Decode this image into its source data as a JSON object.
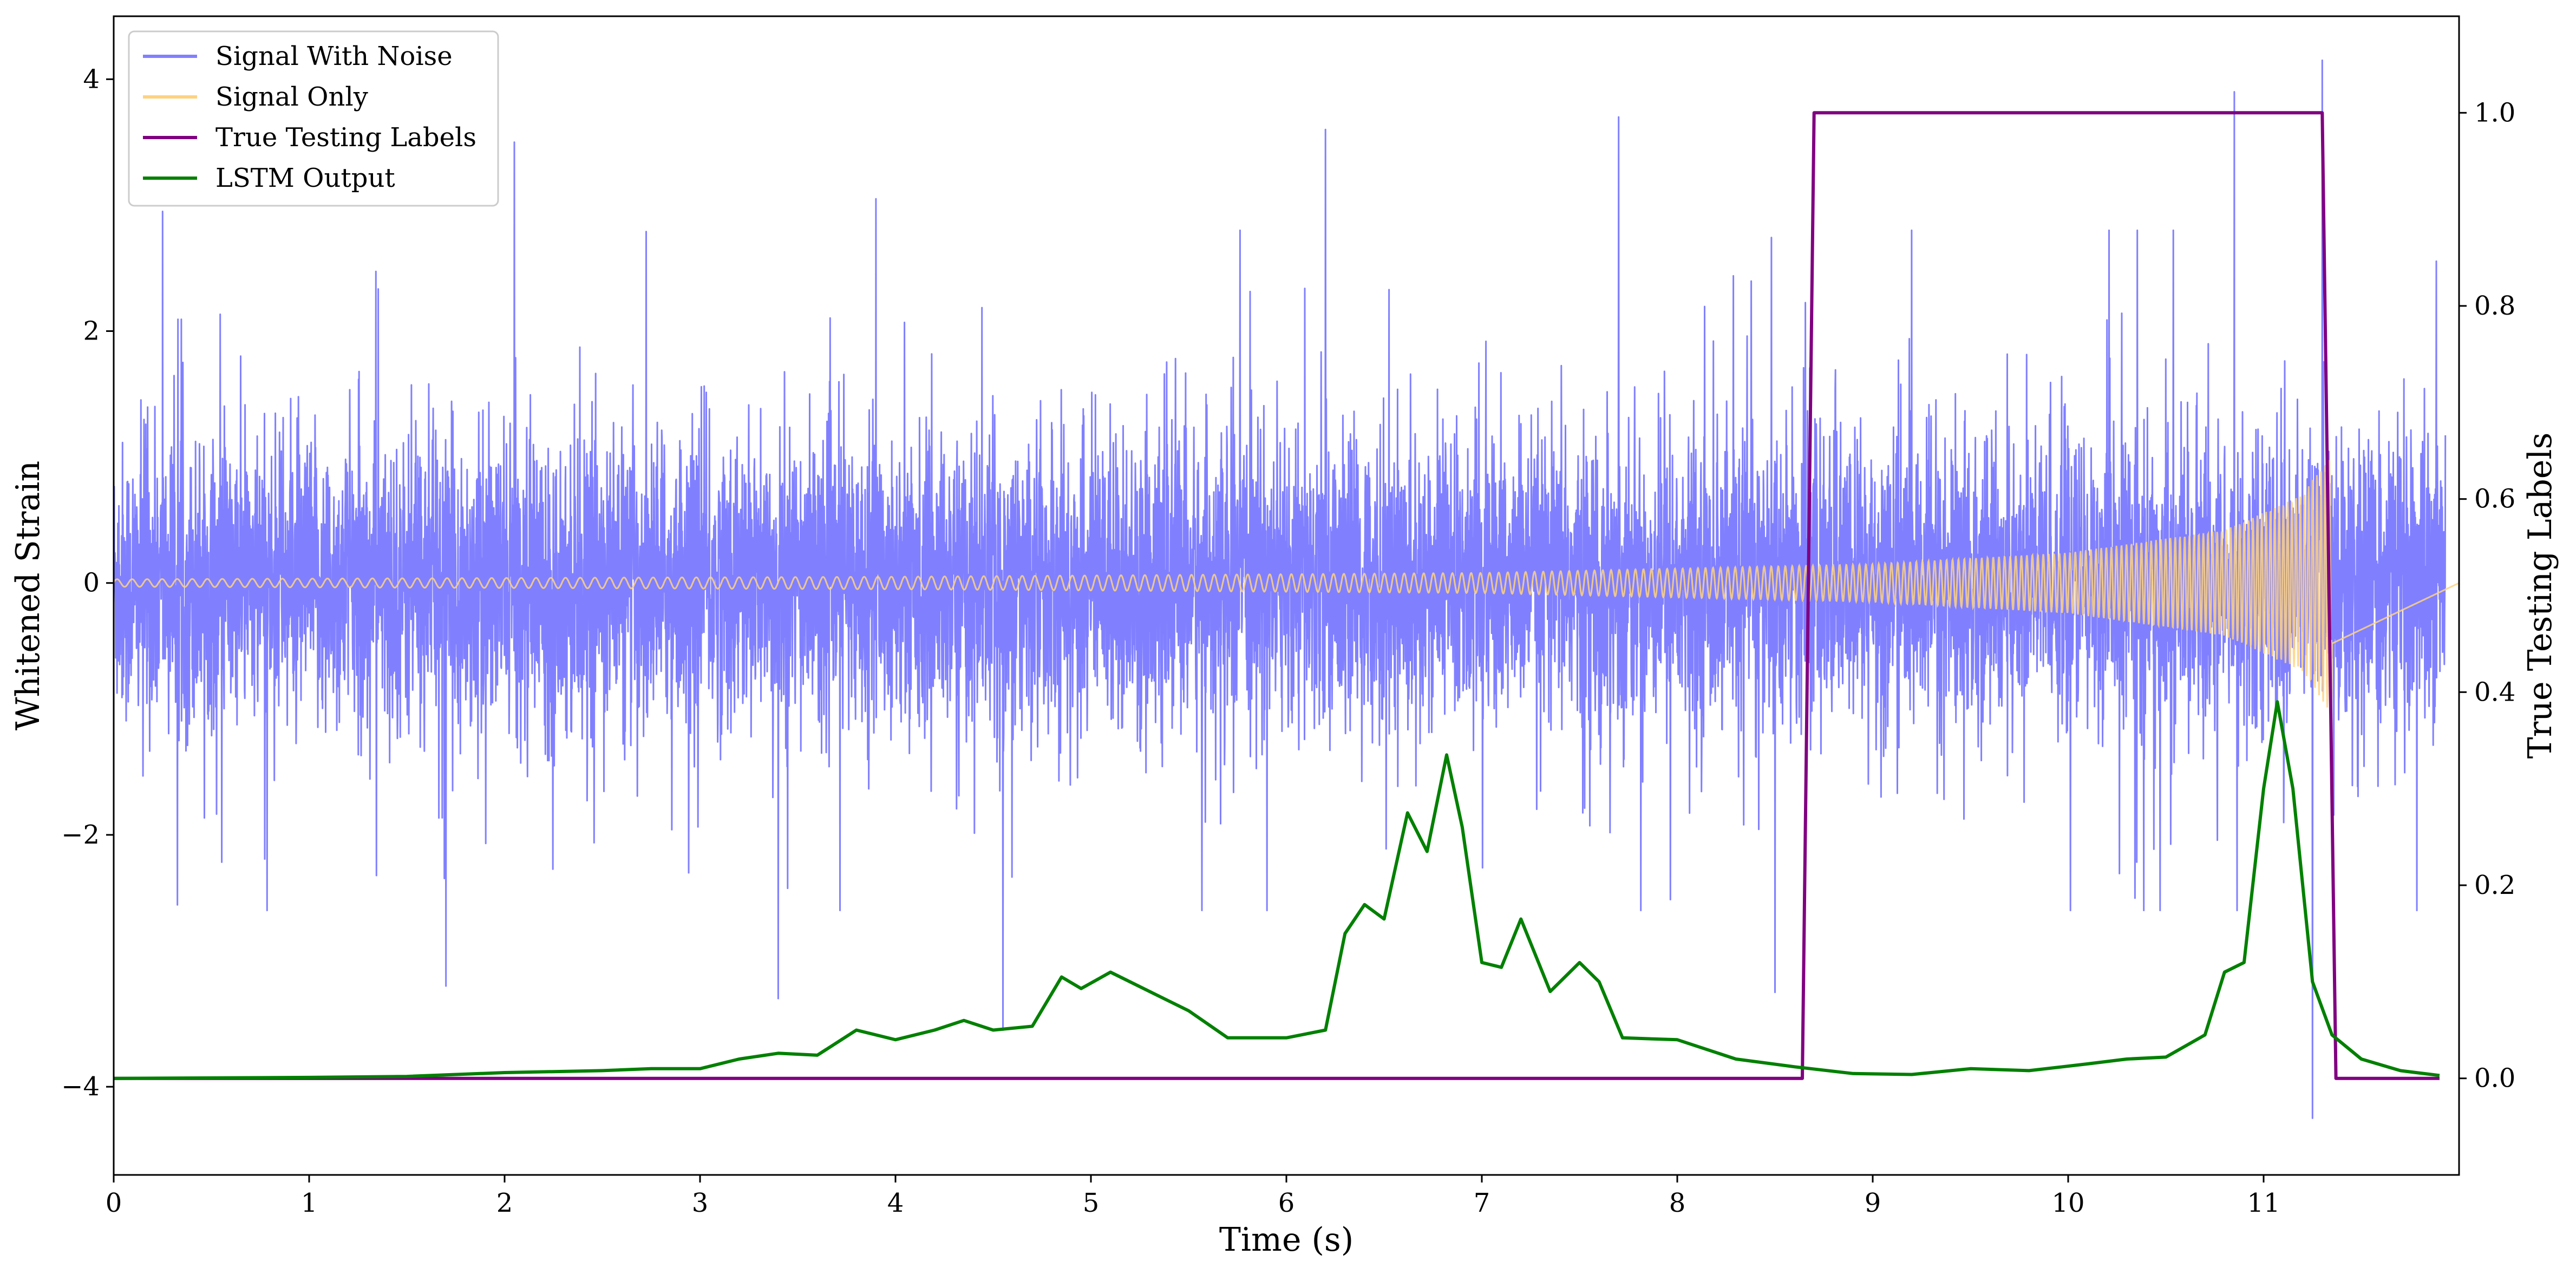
{
  "chart_data": {
    "type": "line",
    "xlabel": "Time (s)",
    "ylabel": "Whitened Strain",
    "y2label": "True Testing Labels",
    "xlim": [
      0,
      12
    ],
    "ylim": [
      -4.7,
      4.5
    ],
    "y2lim": [
      -0.1,
      1.1
    ],
    "x_ticks": [
      0,
      1,
      2,
      3,
      4,
      5,
      6,
      7,
      8,
      9,
      10,
      11
    ],
    "y_ticks": [
      {
        "value": -4,
        "label": "−4"
      },
      {
        "value": -2,
        "label": "−2"
      },
      {
        "value": 0,
        "label": "0"
      },
      {
        "value": 2,
        "label": "2"
      },
      {
        "value": 4,
        "label": "4"
      }
    ],
    "y2_ticks": [
      {
        "value": 0.0,
        "label": "0.0"
      },
      {
        "value": 0.2,
        "label": "0.2"
      },
      {
        "value": 0.4,
        "label": "0.4"
      },
      {
        "value": 0.6,
        "label": "0.6"
      },
      {
        "value": 0.8,
        "label": "0.8"
      },
      {
        "value": 1.0,
        "label": "1.0"
      }
    ],
    "grid": false,
    "legend_position": "top-left",
    "legend": [
      {
        "name": "Signal With Noise",
        "color": "#8080ff"
      },
      {
        "name": "Signal Only",
        "color": "#ffd27f"
      },
      {
        "name": "True Testing Labels",
        "color": "#800080"
      },
      {
        "name": "LSTM Output",
        "color": "#008000"
      }
    ],
    "series": [
      {
        "name": "Signal With Noise",
        "axis": "left",
        "color": "#8080ff",
        "style": "dense_noise",
        "center": 0,
        "band_std": 0.55,
        "typical_peak_range": [
          -2.0,
          2.3
        ],
        "extreme_points": [
          {
            "x": 0.25,
            "y": 2.95
          },
          {
            "x": 2.05,
            "y": 3.5
          },
          {
            "x": 3.9,
            "y": 3.05
          },
          {
            "x": 6.2,
            "y": 3.6
          },
          {
            "x": 7.7,
            "y": 3.7
          },
          {
            "x": 10.85,
            "y": 3.9
          },
          {
            "x": 11.3,
            "y": 4.15
          },
          {
            "x": 1.7,
            "y": -3.2
          },
          {
            "x": 3.4,
            "y": -3.3
          },
          {
            "x": 4.55,
            "y": -3.55
          },
          {
            "x": 8.5,
            "y": -3.25
          },
          {
            "x": 11.25,
            "y": -4.25
          }
        ]
      },
      {
        "name": "Signal Only",
        "axis": "left",
        "color": "#ffd27f",
        "style": "chirp",
        "start": 0,
        "end": 11.35,
        "envelope": [
          {
            "x": 0,
            "y": 0.03
          },
          {
            "x": 4,
            "y": 0.05
          },
          {
            "x": 7,
            "y": 0.08
          },
          {
            "x": 9,
            "y": 0.15
          },
          {
            "x": 10,
            "y": 0.24
          },
          {
            "x": 10.8,
            "y": 0.42
          },
          {
            "x": 11.2,
            "y": 0.7
          },
          {
            "x": 11.33,
            "y": 1.0
          }
        ]
      },
      {
        "name": "True Testing Labels",
        "axis": "right",
        "color": "#800080",
        "points": [
          {
            "x": 0,
            "y": 0
          },
          {
            "x": 8.64,
            "y": 0
          },
          {
            "x": 8.7,
            "y": 1
          },
          {
            "x": 11.3,
            "y": 1
          },
          {
            "x": 11.37,
            "y": 0
          },
          {
            "x": 11.9,
            "y": 0
          }
        ]
      },
      {
        "name": "LSTM Output",
        "axis": "right",
        "color": "#008000",
        "points": [
          {
            "x": 0,
            "y": 0.0
          },
          {
            "x": 1.0,
            "y": 0.001
          },
          {
            "x": 1.5,
            "y": 0.002
          },
          {
            "x": 2.0,
            "y": 0.006
          },
          {
            "x": 2.5,
            "y": 0.008
          },
          {
            "x": 2.75,
            "y": 0.01
          },
          {
            "x": 3.0,
            "y": 0.01
          },
          {
            "x": 3.2,
            "y": 0.02
          },
          {
            "x": 3.4,
            "y": 0.026
          },
          {
            "x": 3.6,
            "y": 0.024
          },
          {
            "x": 3.8,
            "y": 0.05
          },
          {
            "x": 4.0,
            "y": 0.04
          },
          {
            "x": 4.2,
            "y": 0.05
          },
          {
            "x": 4.35,
            "y": 0.06
          },
          {
            "x": 4.5,
            "y": 0.05
          },
          {
            "x": 4.7,
            "y": 0.054
          },
          {
            "x": 4.85,
            "y": 0.105
          },
          {
            "x": 4.95,
            "y": 0.093
          },
          {
            "x": 5.1,
            "y": 0.11
          },
          {
            "x": 5.3,
            "y": 0.09
          },
          {
            "x": 5.5,
            "y": 0.07
          },
          {
            "x": 5.7,
            "y": 0.042
          },
          {
            "x": 6.0,
            "y": 0.042
          },
          {
            "x": 6.2,
            "y": 0.05
          },
          {
            "x": 6.3,
            "y": 0.15
          },
          {
            "x": 6.4,
            "y": 0.18
          },
          {
            "x": 6.5,
            "y": 0.165
          },
          {
            "x": 6.62,
            "y": 0.275
          },
          {
            "x": 6.72,
            "y": 0.235
          },
          {
            "x": 6.82,
            "y": 0.335
          },
          {
            "x": 6.9,
            "y": 0.26
          },
          {
            "x": 7.0,
            "y": 0.12
          },
          {
            "x": 7.1,
            "y": 0.115
          },
          {
            "x": 7.2,
            "y": 0.165
          },
          {
            "x": 7.35,
            "y": 0.09
          },
          {
            "x": 7.5,
            "y": 0.12
          },
          {
            "x": 7.6,
            "y": 0.1
          },
          {
            "x": 7.72,
            "y": 0.042
          },
          {
            "x": 8.0,
            "y": 0.04
          },
          {
            "x": 8.3,
            "y": 0.02
          },
          {
            "x": 8.6,
            "y": 0.012
          },
          {
            "x": 8.9,
            "y": 0.005
          },
          {
            "x": 9.2,
            "y": 0.004
          },
          {
            "x": 9.5,
            "y": 0.01
          },
          {
            "x": 9.8,
            "y": 0.008
          },
          {
            "x": 10.1,
            "y": 0.015
          },
          {
            "x": 10.3,
            "y": 0.02
          },
          {
            "x": 10.5,
            "y": 0.022
          },
          {
            "x": 10.7,
            "y": 0.045
          },
          {
            "x": 10.8,
            "y": 0.11
          },
          {
            "x": 10.9,
            "y": 0.12
          },
          {
            "x": 11.0,
            "y": 0.3
          },
          {
            "x": 11.07,
            "y": 0.39
          },
          {
            "x": 11.15,
            "y": 0.3
          },
          {
            "x": 11.25,
            "y": 0.1
          },
          {
            "x": 11.35,
            "y": 0.045
          },
          {
            "x": 11.5,
            "y": 0.02
          },
          {
            "x": 11.7,
            "y": 0.008
          },
          {
            "x": 11.9,
            "y": 0.003
          }
        ]
      }
    ]
  }
}
